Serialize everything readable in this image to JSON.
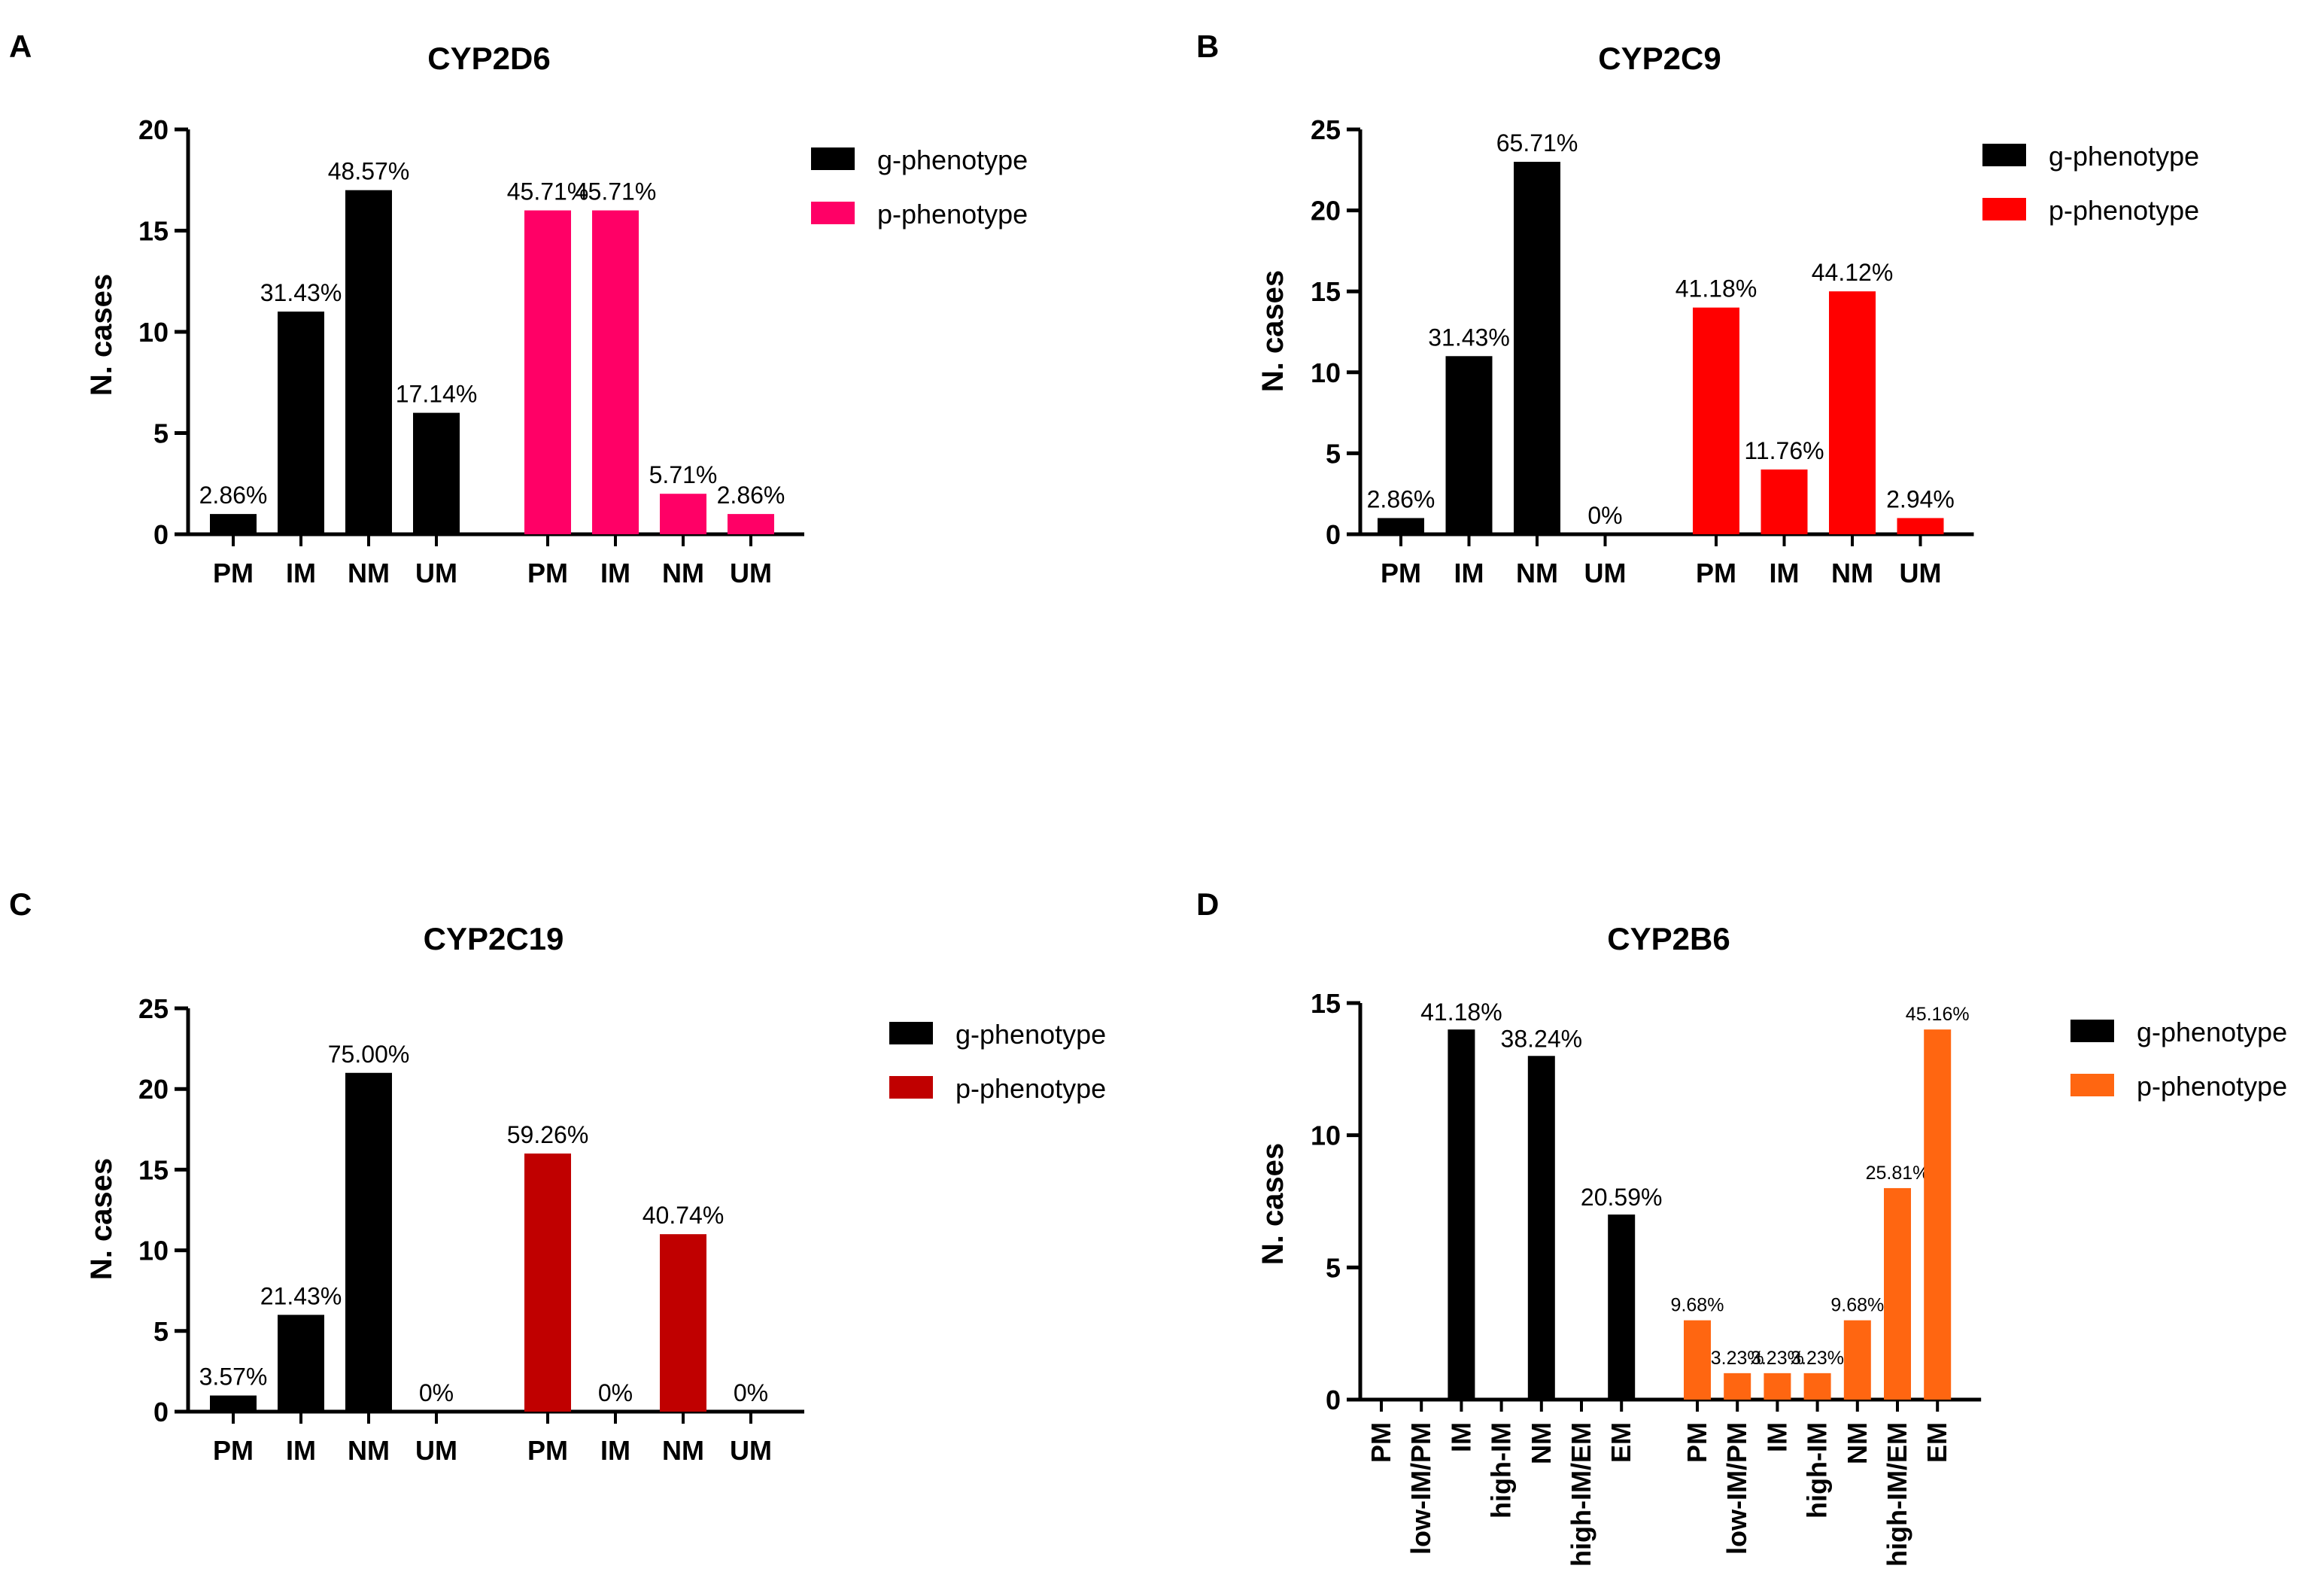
{
  "panels": [
    {
      "letter": "A",
      "bar_color": "#ff0066"
    },
    {
      "letter": "B",
      "bar_color": "#ff0000"
    },
    {
      "letter": "C",
      "bar_color": "#c00000"
    },
    {
      "letter": "D",
      "bar_color": "#ff6611"
    }
  ],
  "legend": {
    "g": "g-phenotype",
    "p": "p-phenotype",
    "g_color": "#000000"
  },
  "chart_data": [
    {
      "type": "bar",
      "title": "CYP2D6",
      "ylabel": "N. cases",
      "ylim": [
        0,
        20
      ],
      "yticks": [
        "0",
        "5",
        "10",
        "15",
        "20"
      ],
      "categories": [
        "PM",
        "IM",
        "NM",
        "UM"
      ],
      "series": [
        {
          "name": "g-phenotype",
          "values": [
            1,
            11,
            17,
            6
          ],
          "labels": [
            "2.86%",
            "31.43%",
            "48.57%",
            "17.14%"
          ]
        },
        {
          "name": "p-phenotype",
          "values": [
            16,
            16,
            2,
            1
          ],
          "labels": [
            "45.71%",
            "45.71%",
            "5.71%",
            "2.86%"
          ]
        }
      ]
    },
    {
      "type": "bar",
      "title": "CYP2C9",
      "ylabel": "N. cases",
      "ylim": [
        0,
        25
      ],
      "yticks": [
        "0",
        "5",
        "10",
        "15",
        "20",
        "25"
      ],
      "categories": [
        "PM",
        "IM",
        "NM",
        "UM"
      ],
      "series": [
        {
          "name": "g-phenotype",
          "values": [
            1,
            11,
            23,
            0
          ],
          "labels": [
            "2.86%",
            "31.43%",
            "65.71%",
            "0%"
          ]
        },
        {
          "name": "p-phenotype",
          "values": [
            14,
            4,
            15,
            1
          ],
          "labels": [
            "41.18%",
            "11.76%",
            "44.12%",
            "2.94%"
          ]
        }
      ]
    },
    {
      "type": "bar",
      "title": "CYP2C19",
      "ylabel": "N. cases",
      "ylim": [
        0,
        25
      ],
      "yticks": [
        "0",
        "5",
        "10",
        "15",
        "20",
        "25"
      ],
      "categories": [
        "PM",
        "IM",
        "NM",
        "UM"
      ],
      "series": [
        {
          "name": "g-phenotype",
          "values": [
            1,
            6,
            21,
            0
          ],
          "labels": [
            "3.57%",
            "21.43%",
            "75.00%",
            "0%"
          ]
        },
        {
          "name": "p-phenotype",
          "values": [
            16,
            0,
            11,
            0
          ],
          "labels": [
            "59.26%",
            "0%",
            "40.74%",
            "0%"
          ]
        }
      ]
    },
    {
      "type": "bar",
      "title": "CYP2B6",
      "ylabel": "N. cases",
      "ylim": [
        0,
        15
      ],
      "yticks": [
        "0",
        "5",
        "10",
        "15"
      ],
      "categories": [
        "PM",
        "low-IM/PM",
        "IM",
        "high-IM",
        "NM",
        "high-IM/EM",
        "EM"
      ],
      "series": [
        {
          "name": "g-phenotype",
          "values": [
            0,
            0,
            14,
            0,
            13,
            0,
            7
          ],
          "labels": [
            "",
            "",
            "41.18%",
            "",
            "38.24%",
            "",
            "20.59%"
          ]
        },
        {
          "name": "p-phenotype",
          "values": [
            3,
            1,
            1,
            1,
            3,
            8,
            14
          ],
          "labels": [
            "9.68%",
            "3.23%",
            "3.23%",
            "3.23%",
            "9.68%",
            "25.81%",
            "45.16%"
          ]
        }
      ]
    }
  ]
}
